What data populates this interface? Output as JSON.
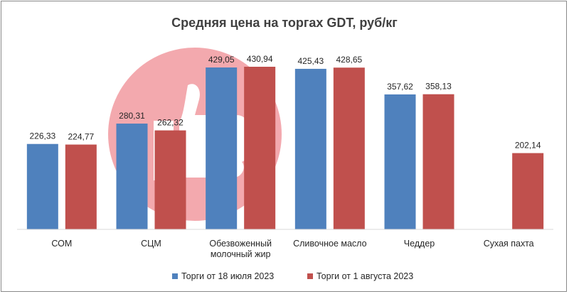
{
  "chart_data": {
    "type": "bar",
    "title": "Средняя цена на торгах GDT, руб/кг",
    "xlabel": "",
    "ylabel": "",
    "ylim": [
      0,
      450
    ],
    "grid": false,
    "legend": "bottom",
    "categories": [
      [
        "СОМ"
      ],
      [
        "СЦМ"
      ],
      [
        "Обезвоженный",
        "молочный жир"
      ],
      [
        "Сливочное масло"
      ],
      [
        "Чеддер"
      ],
      [
        "Сухая пахта"
      ]
    ],
    "series": [
      {
        "name": "Торги от 18 июля 2023",
        "color": "#4f81bd",
        "values": [
          226.33,
          280.31,
          429.05,
          425.43,
          357.62,
          null
        ],
        "labels": [
          "226,33",
          "280,31",
          "429,05",
          "425,43",
          "357,62",
          ""
        ]
      },
      {
        "name": "Торги от 1 августа 2023",
        "color": "#c0504d",
        "values": [
          224.77,
          262.32,
          430.94,
          428.65,
          358.13,
          202.14
        ],
        "labels": [
          "224,77",
          "262,32",
          "430,94",
          "428,65",
          "358,13",
          "202,14"
        ]
      }
    ],
    "watermark_color": "#f2a0a6"
  }
}
